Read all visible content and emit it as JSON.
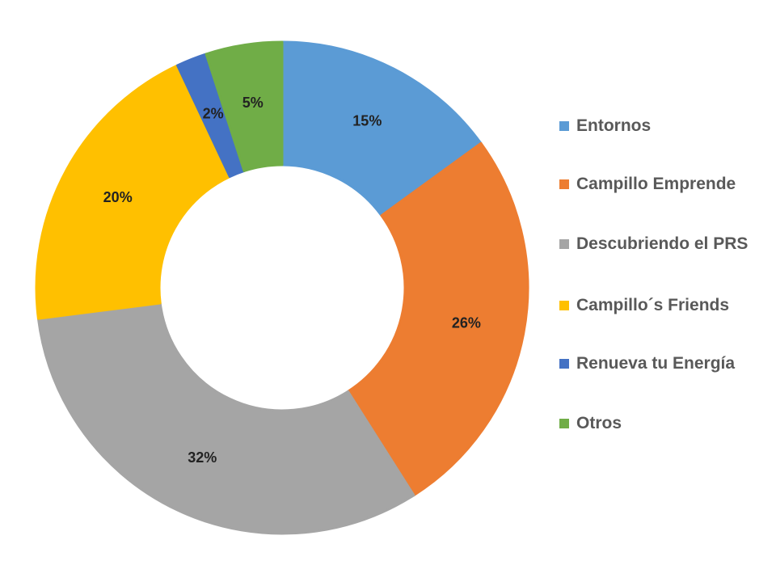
{
  "chart_data": {
    "type": "pie",
    "donut": true,
    "title": "",
    "legend_position": "right",
    "slices": [
      {
        "name": "Entornos",
        "value": 15,
        "label": "15%",
        "color": "#5B9BD5"
      },
      {
        "name": "Campillo Emprende",
        "value": 26,
        "label": "26%",
        "color": "#ED7D31"
      },
      {
        "name": "Descubriendo el PRS",
        "value": 32,
        "label": "32%",
        "color": "#A5A5A5"
      },
      {
        "name": "Campillo´s Friends",
        "value": 20,
        "label": "20%",
        "color": "#FFC000"
      },
      {
        "name": "Renueva tu Energía",
        "value": 2,
        "label": "2%",
        "color": "#4472C4"
      },
      {
        "name": "Otros",
        "value": 5,
        "label": "5%",
        "color": "#70AD47"
      }
    ]
  }
}
